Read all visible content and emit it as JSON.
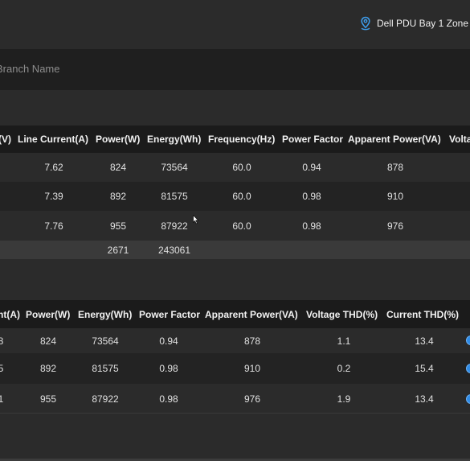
{
  "header": {
    "location_label": "Dell PDU Bay 1 Zone"
  },
  "branch": {
    "placeholder": "Branch Name"
  },
  "table1": {
    "columns": [
      "(V)",
      "Line Current(A)",
      "Power(W)",
      "Energy(Wh)",
      "Frequency(Hz)",
      "Power Factor",
      "Apparent Power(VA)",
      "Volta"
    ],
    "rows": [
      [
        "",
        "7.62",
        "824",
        "73564",
        "60.0",
        "0.94",
        "878",
        ""
      ],
      [
        "",
        "7.39",
        "892",
        "81575",
        "60.0",
        "0.98",
        "910",
        ""
      ],
      [
        "",
        "7.76",
        "955",
        "87922",
        "60.0",
        "0.98",
        "976",
        ""
      ]
    ],
    "total": {
      "power": "2671",
      "energy": "243061"
    }
  },
  "table2": {
    "columns": [
      "nt(A)",
      "Power(W)",
      "Energy(Wh)",
      "Power Factor",
      "Apparent Power(VA)",
      "Voltage THD(%)",
      "Current THD(%)"
    ],
    "rows": [
      [
        "8",
        "824",
        "73564",
        "0.94",
        "878",
        "1.1",
        "13.4"
      ],
      [
        "5",
        "892",
        "81575",
        "0.98",
        "910",
        "0.2",
        "15.4"
      ],
      [
        "1",
        "955",
        "87922",
        "0.98",
        "976",
        "1.9",
        "13.4"
      ]
    ]
  },
  "colors": {
    "accent": "#2f8be6",
    "background": "#2b2b2b",
    "header_bg": "#1b1b1b"
  },
  "icons": {
    "location": "location-pin-icon",
    "row_action": "info-dot-icon"
  }
}
